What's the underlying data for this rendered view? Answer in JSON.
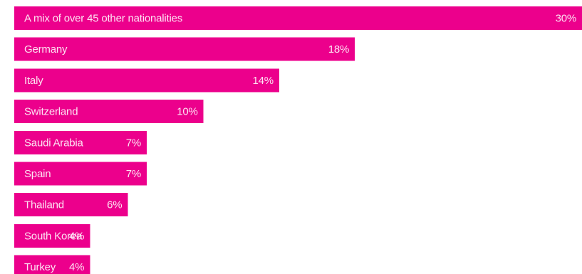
{
  "colors": {
    "bar": "#ec008c",
    "text": "#fde3f3"
  },
  "chart_data": {
    "type": "bar",
    "orientation": "horizontal",
    "value_suffix": "%",
    "xlim": [
      0,
      30
    ],
    "grid": false,
    "categories": [
      "A mix of over 45 other nationalities",
      "Germany",
      "Italy",
      "Switzerland",
      "Saudi Arabia",
      "Spain",
      "Thailand",
      "South Korea",
      "Turkey"
    ],
    "values": [
      30,
      18,
      14,
      10,
      7,
      7,
      6,
      4,
      4
    ],
    "value_labels": [
      "30%",
      "18%",
      "14%",
      "10%",
      "7%",
      "7%",
      "6%",
      "4%",
      "4%"
    ]
  }
}
